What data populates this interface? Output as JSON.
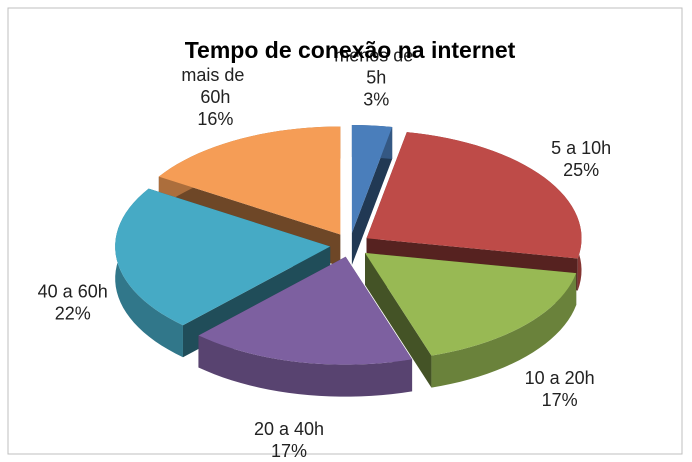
{
  "chart_data": {
    "type": "pie",
    "title": "Tempo de conexão na internet",
    "categories": [
      "menos de 5h",
      "5 a 10h",
      "10 a 20h",
      "20 a 40h",
      "40 a 60h",
      "mais de 60h"
    ],
    "values": [
      3,
      25,
      17,
      17,
      22,
      16
    ],
    "value_labels": [
      "3%",
      "25%",
      "17%",
      "17%",
      "22%",
      "16%"
    ],
    "colors": [
      "#4a7ebb",
      "#be4b48",
      "#98b954",
      "#7d60a0",
      "#46aac5",
      "#f59d56"
    ]
  }
}
